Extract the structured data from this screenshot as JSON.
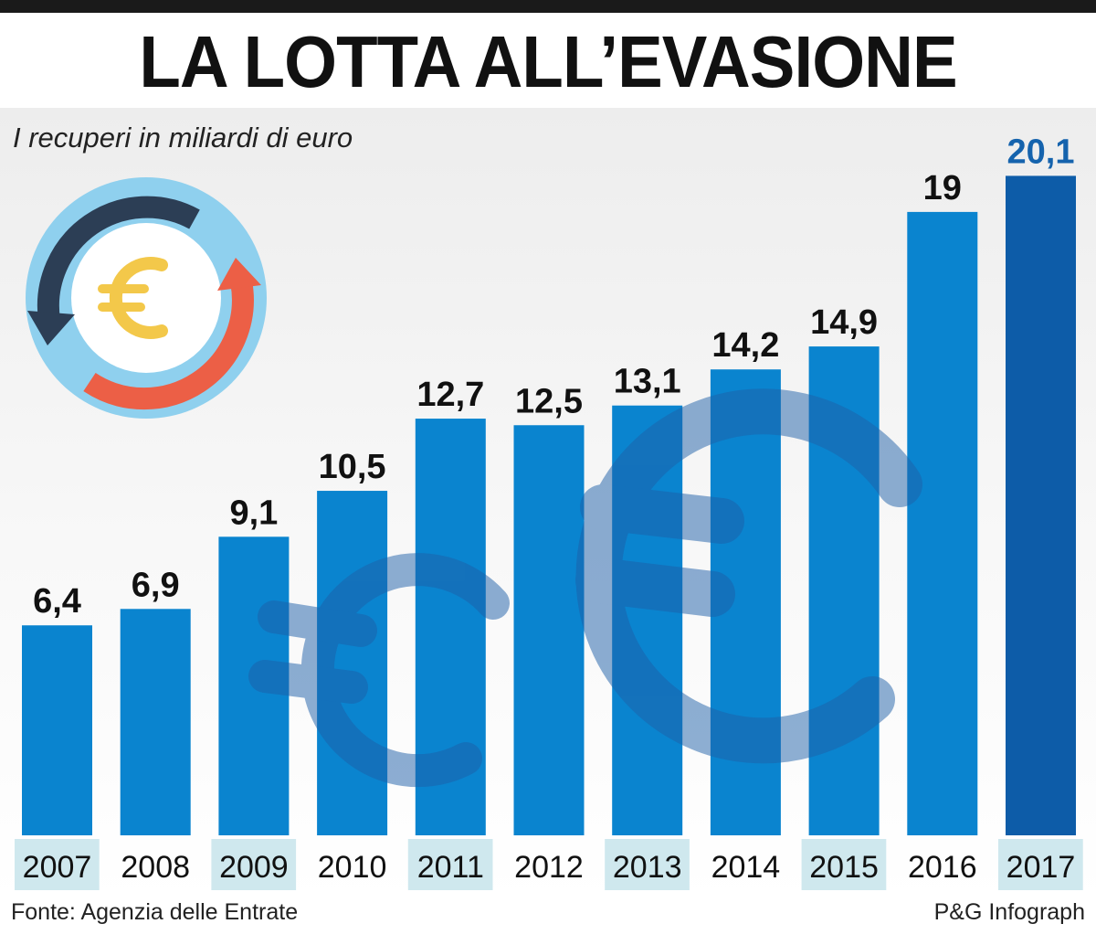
{
  "title": "LA LOTTA ALL’EVASIONE",
  "subtitle": "I recuperi in miliardi di euro",
  "source": "Fonte: Agenzia delle Entrate",
  "credit": "P&G Infograph",
  "colors": {
    "bar": "#0a84cf",
    "highlight_bar": "#0d5ca8",
    "highlight_label": "#1563ad",
    "year_band": "#cfe8ee",
    "watermark": "#1d5fa8"
  },
  "icons": [
    "euro-cycle-icon",
    "euro-watermark-icon"
  ],
  "chart_data": {
    "type": "bar",
    "categories": [
      "2007",
      "2008",
      "2009",
      "2010",
      "2011",
      "2012",
      "2013",
      "2014",
      "2015",
      "2016",
      "2017"
    ],
    "values": [
      6.4,
      6.9,
      9.1,
      10.5,
      12.7,
      12.5,
      13.1,
      14.2,
      14.9,
      19,
      20.1
    ],
    "value_labels": [
      "6,4",
      "6,9",
      "9,1",
      "10,5",
      "12,7",
      "12,5",
      "13,1",
      "14,2",
      "14,9",
      "19",
      "20,1"
    ],
    "highlight": "2017",
    "title": "LA LOTTA ALL’EVASIONE",
    "ylabel": "I recuperi in miliardi di euro",
    "grid": false,
    "legend": "none"
  }
}
